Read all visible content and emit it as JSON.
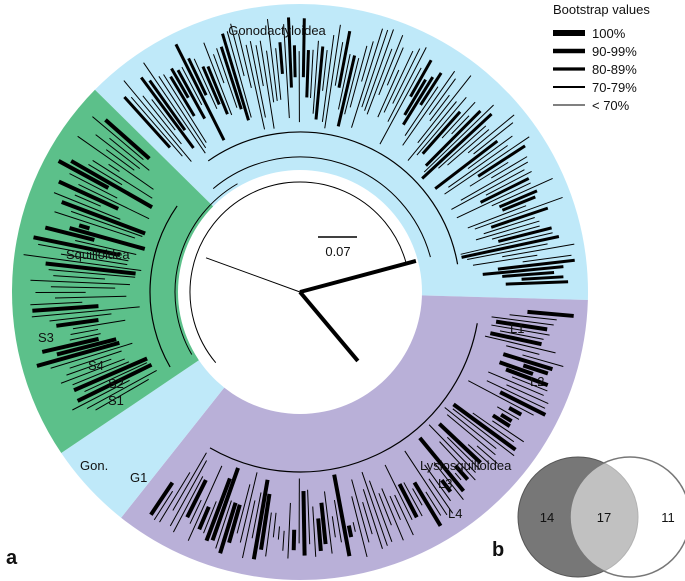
{
  "tree": {
    "clades": [
      {
        "label": "Gonodactyloidea"
      },
      {
        "label": "Squilloidea"
      },
      {
        "label": "Lysiosquilloidea"
      },
      {
        "label": "Gon."
      }
    ],
    "leaves": [
      "S1",
      "S2",
      "S3",
      "S4",
      "G1",
      "L1",
      "L2",
      "L3",
      "L4"
    ],
    "scale": "0.07"
  },
  "legend": {
    "title": "Bootstrap values",
    "entries": [
      "100%",
      "90-99%",
      "80-89%",
      "70-79%",
      "< 70%"
    ]
  },
  "panels": [
    "a",
    "b"
  ],
  "venn": {
    "left": "14",
    "overlap": "17",
    "right": "11"
  }
}
